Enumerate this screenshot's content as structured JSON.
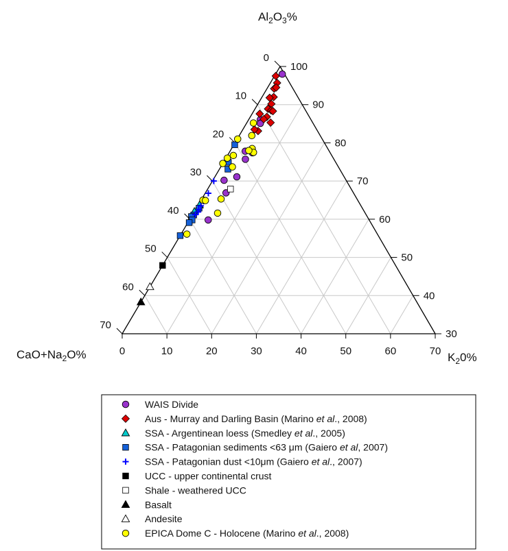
{
  "chart_data": {
    "type": "scatter",
    "subtype": "ternary",
    "axes": {
      "top": "Al₂O₃%",
      "left": "CaO+Na₂O%",
      "right": "K₂O%"
    },
    "axis_ranges": {
      "Al2O3": [
        30,
        100
      ],
      "CaO+Na2O": [
        0,
        70
      ],
      "K2O": [
        0,
        70
      ]
    },
    "ticks": {
      "left_edge": [
        "0",
        "10",
        "20",
        "30",
        "40",
        "50",
        "60",
        "70"
      ],
      "right_edge": [
        "100",
        "90",
        "80",
        "70",
        "60",
        "50",
        "40",
        "30"
      ],
      "bottom_edge": [
        "0",
        "10",
        "20",
        "30",
        "40",
        "50",
        "60",
        "70"
      ]
    },
    "grid": true,
    "legend_position": "bottom",
    "series": [
      {
        "name": "WAIS Divide",
        "marker": "circle",
        "color": "#9933cc",
        "edge": "#000000",
        "points": [
          {
            "k": 1.5,
            "c": 0.5
          },
          {
            "k": 2.6,
            "c": 11.3
          },
          {
            "k": 3.1,
            "c": 11.8
          },
          {
            "k": 5.2,
            "c": 17.4
          },
          {
            "k": 3.4,
            "c": 18.8
          },
          {
            "k": 4.5,
            "c": 19.8
          },
          {
            "k": 4.9,
            "c": 24.0
          },
          {
            "k": 2.5,
            "c": 27.3
          },
          {
            "k": 4.6,
            "c": 28.5
          },
          {
            "k": 4.2,
            "c": 36.0
          }
        ]
      },
      {
        "name": "Aus - Murray and Darling Basin (Marino et al., 2008)",
        "marker": "diamond",
        "color": "#dd0000",
        "edge": "#000000",
        "points": [
          {
            "k": 0.3,
            "c": 2.2
          },
          {
            "k": 1.5,
            "c": 2.8
          },
          {
            "k": 1.6,
            "c": 4.2
          },
          {
            "k": 1.9,
            "c": 3.6
          },
          {
            "k": 2.6,
            "c": 5.4
          },
          {
            "k": 1.8,
            "c": 6.4
          },
          {
            "k": 3.0,
            "c": 6.8
          },
          {
            "k": 2.9,
            "c": 8.2
          },
          {
            "k": 3.8,
            "c": 7.7
          },
          {
            "k": 4.3,
            "c": 7.4
          },
          {
            "k": 3.7,
            "c": 9.5
          },
          {
            "k": 3.3,
            "c": 10.5
          },
          {
            "k": 5.3,
            "c": 9.4
          },
          {
            "k": 1.7,
            "c": 10.7
          },
          {
            "k": 3.6,
            "c": 13.3
          },
          {
            "k": 2.6,
            "c": 13.9
          }
        ]
      },
      {
        "name": "SSA - Argentinean loess (Smedley et al., 2005)",
        "marker": "triangle",
        "color": "#00cccc",
        "edge": "#000000",
        "points": [
          {
            "k": 0.5,
            "c": 34.5
          },
          {
            "k": 0.3,
            "c": 36.0
          },
          {
            "k": 0.0,
            "c": 38.0
          }
        ]
      },
      {
        "name": "SSA - Patagonian sediments <63 μm (Gaiero et al, 2007)",
        "marker": "square",
        "color": "#1560d8",
        "edge": "#000000",
        "points": [
          {
            "k": 0.2,
            "c": 20.3
          },
          {
            "k": 1.1,
            "c": 24.0
          },
          {
            "k": 1.9,
            "c": 25.0
          },
          {
            "k": 0.6,
            "c": 36.5
          },
          {
            "k": 0.3,
            "c": 38.6
          },
          {
            "k": 0.0,
            "c": 39.3
          },
          {
            "k": 0.6,
            "c": 39.6
          },
          {
            "k": 0.3,
            "c": 40.6
          },
          {
            "k": 0.0,
            "c": 44.3
          }
        ]
      },
      {
        "name": "SSA - Patagonian dust <10μm (Gaiero et al., 2007)",
        "marker": "plus",
        "color": "#0000ff",
        "points": [
          {
            "k": 0.3,
            "c": 29.7
          },
          {
            "k": 0.7,
            "c": 32.5
          },
          {
            "k": 0.7,
            "c": 34.6
          },
          {
            "k": 0.7,
            "c": 35.8
          },
          {
            "k": 0.7,
            "c": 36.8
          },
          {
            "k": 0.9,
            "c": 37.2
          },
          {
            "k": 0.6,
            "c": 38.2
          }
        ]
      },
      {
        "name": "UCC - upper continental crust",
        "marker": "square",
        "color": "#000000",
        "edge": "#000000",
        "points": [
          {
            "k": 0.0,
            "c": 52.1
          }
        ]
      },
      {
        "name": "Shale - weathered UCC",
        "marker": "square-open",
        "color": "#ffffff",
        "edge": "#000000",
        "points": [
          {
            "k": 5.1,
            "c": 27.0
          }
        ]
      },
      {
        "name": "Basalt",
        "marker": "triangle",
        "color": "#000000",
        "edge": "#000000",
        "points": [
          {
            "k": 0.0,
            "c": 61.7
          }
        ]
      },
      {
        "name": "Andesite",
        "marker": "triangle-open",
        "color": "#ffffff",
        "edge": "#000000",
        "points": [
          {
            "k": 0.0,
            "c": 57.7
          }
        ]
      },
      {
        "name": "EPICA Dome C - Holocene (Marino et al., 2008)",
        "marker": "circle",
        "color": "#ffff00",
        "edge": "#000000",
        "points": [
          {
            "k": 1.5,
            "c": 13.3
          },
          {
            "k": 2.8,
            "c": 15.3
          },
          {
            "k": 4.6,
            "c": 16.9
          },
          {
            "k": 5.4,
            "c": 17.1
          },
          {
            "k": 4.1,
            "c": 17.9
          },
          {
            "k": 0.1,
            "c": 18.9
          },
          {
            "k": 1.3,
            "c": 22.0
          },
          {
            "k": 2.6,
            "c": 23.7
          },
          {
            "k": 0.3,
            "c": 23.7
          },
          {
            "k": 0.0,
            "c": 25.4
          },
          {
            "k": 4.3,
            "c": 30.4
          },
          {
            "k": 0.4,
            "c": 34.6
          },
          {
            "k": 1.0,
            "c": 34.1
          },
          {
            "k": 5.4,
            "c": 33.0
          },
          {
            "k": 1.3,
            "c": 42.6
          }
        ]
      }
    ]
  }
}
